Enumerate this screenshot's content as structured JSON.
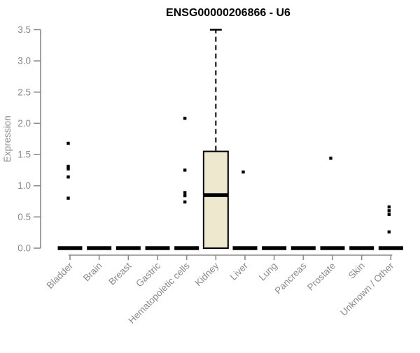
{
  "chart_data": {
    "type": "boxplot",
    "title": "ENSG00000206866 - U6",
    "xlabel": "",
    "ylabel": "Expression",
    "ylim": [
      0.0,
      3.5
    ],
    "yticks": [
      0.0,
      0.5,
      1.0,
      1.5,
      2.0,
      2.5,
      3.0,
      3.5
    ],
    "ytick_labels": [
      "0.0",
      "0.5",
      "1.0",
      "1.5",
      "2.0",
      "2.5",
      "3.0",
      "3.5"
    ],
    "categories": [
      "Bladder",
      "Brain",
      "Breast",
      "Gastric",
      "Hematopoietic cells",
      "Kidney",
      "Liver",
      "Lung",
      "Pancreas",
      "Prostate",
      "Skin",
      "Unknown / Other"
    ],
    "series": [
      {
        "category": "Bladder",
        "min": 0,
        "q1": 0,
        "median": 0,
        "q3": 0,
        "max": 0,
        "outliers": [
          1.68,
          1.31,
          1.27,
          1.14,
          0.8
        ]
      },
      {
        "category": "Brain",
        "min": 0,
        "q1": 0,
        "median": 0,
        "q3": 0,
        "max": 0,
        "outliers": []
      },
      {
        "category": "Breast",
        "min": 0,
        "q1": 0,
        "median": 0,
        "q3": 0,
        "max": 0,
        "outliers": []
      },
      {
        "category": "Gastric",
        "min": 0,
        "q1": 0,
        "median": 0,
        "q3": 0,
        "max": 0,
        "outliers": []
      },
      {
        "category": "Hematopoietic cells",
        "min": 0,
        "q1": 0,
        "median": 0,
        "q3": 0,
        "max": 0,
        "outliers": [
          2.08,
          1.25,
          0.89,
          0.84,
          0.74
        ]
      },
      {
        "category": "Kidney",
        "min": 0,
        "q1": 0,
        "median": 0.85,
        "q3": 1.55,
        "max": 3.5,
        "outliers": []
      },
      {
        "category": "Liver",
        "min": 0,
        "q1": 0,
        "median": 0,
        "q3": 0,
        "max": 0,
        "outliers": [
          1.22
        ]
      },
      {
        "category": "Lung",
        "min": 0,
        "q1": 0,
        "median": 0,
        "q3": 0,
        "max": 0,
        "outliers": []
      },
      {
        "category": "Pancreas",
        "min": 0,
        "q1": 0,
        "median": 0,
        "q3": 0,
        "max": 0,
        "outliers": []
      },
      {
        "category": "Prostate",
        "min": 0,
        "q1": 0,
        "median": 0,
        "q3": 0,
        "max": 0,
        "outliers": [
          1.44
        ]
      },
      {
        "category": "Skin",
        "min": 0,
        "q1": 0,
        "median": 0,
        "q3": 0,
        "max": 0,
        "outliers": []
      },
      {
        "category": "Unknown / Other",
        "min": 0,
        "q1": 0,
        "median": 0,
        "q3": 0,
        "max": 0,
        "outliers": [
          0.66,
          0.6,
          0.54,
          0.26
        ]
      }
    ],
    "grid": false,
    "legend": false,
    "colors": {
      "background": "#FFFFFF",
      "title_text": "#000000",
      "axis": "#8A8A8A",
      "tick_text": "#8A8A8A",
      "box_fill": "#EDE8CE",
      "box_border": "#000000",
      "median": "#000000",
      "whisker": "#000000",
      "outlier": "#000000"
    }
  }
}
